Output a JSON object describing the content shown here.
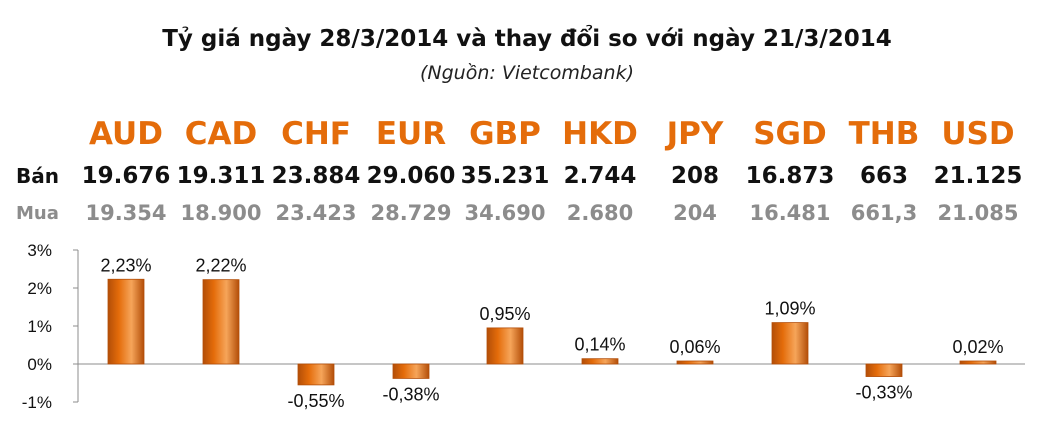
{
  "title": "Tỷ giá ngày 28/3/2014 và thay đổi so với ngày 21/3/2014",
  "subtitle": "(Nguồn: Vietcombank)",
  "rows": {
    "sell_label": "Bán",
    "buy_label": "Mua"
  },
  "currencies": [
    {
      "code": "AUD",
      "sell": "19.676",
      "buy": "19.354"
    },
    {
      "code": "CAD",
      "sell": "19.311",
      "buy": "18.900"
    },
    {
      "code": "CHF",
      "sell": "23.884",
      "buy": "23.423"
    },
    {
      "code": "EUR",
      "sell": "29.060",
      "buy": "28.729"
    },
    {
      "code": "GBP",
      "sell": "35.231",
      "buy": "34.690"
    },
    {
      "code": "HKD",
      "sell": "2.744",
      "buy": "2.680"
    },
    {
      "code": "JPY",
      "sell": "208",
      "buy": "204"
    },
    {
      "code": "SGD",
      "sell": "16.873",
      "buy": "16.481"
    },
    {
      "code": "THB",
      "sell": "663",
      "buy": "661,3"
    },
    {
      "code": "USD",
      "sell": "21.125",
      "buy": "21.085"
    }
  ],
  "chart_data": {
    "type": "bar",
    "categories": [
      "AUD",
      "CAD",
      "CHF",
      "EUR",
      "GBP",
      "HKD",
      "JPY",
      "SGD",
      "THB",
      "USD"
    ],
    "values": [
      2.23,
      2.22,
      -0.55,
      -0.38,
      0.95,
      0.14,
      0.06,
      1.09,
      -0.33,
      0.02
    ],
    "data_labels": [
      "2,23%",
      "2,22%",
      "-0,55%",
      "-0,38%",
      "0,95%",
      "0,14%",
      "0,06%",
      "1,09%",
      "-0,33%",
      "0,02%"
    ],
    "yticks": [
      "3%",
      "2%",
      "1%",
      "0%",
      "-1%"
    ],
    "ylim": [
      -1,
      3
    ],
    "grid": false,
    "bar_color": "#e46c0a",
    "bar_dark": "#b34e08",
    "bar_light": "#f6a55a"
  }
}
